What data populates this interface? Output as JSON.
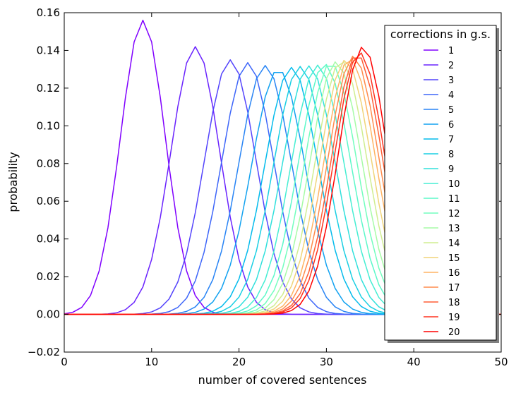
{
  "chart_data": {
    "type": "line",
    "title": "",
    "xlabel": "number of covered sentences",
    "ylabel": "probability",
    "xlim": [
      0,
      50
    ],
    "ylim": [
      -0.02,
      0.16
    ],
    "xticks": [
      "0",
      "10",
      "20",
      "30",
      "40",
      "50"
    ],
    "xtick_values": [
      0,
      10,
      20,
      30,
      40,
      50
    ],
    "yticks": [
      "−0.02",
      "0.00",
      "0.02",
      "0.04",
      "0.06",
      "0.08",
      "0.10",
      "0.12",
      "0.14",
      "0.16"
    ],
    "ytick_values": [
      -0.02,
      0.0,
      0.02,
      0.04,
      0.06,
      0.08,
      0.1,
      0.12,
      0.14,
      0.16
    ],
    "grid": false,
    "legend": {
      "title": "corrections in g.s.",
      "placement": "top-right"
    },
    "colormap": "rainbow",
    "series": [
      {
        "name": "1",
        "color": "#8000ff",
        "peak_x": 9,
        "peak_y": 0.156
      },
      {
        "name": "2",
        "color": "#6a23fe",
        "peak_x": 15,
        "peak_y": 0.142
      },
      {
        "name": "3",
        "color": "#5444fc",
        "peak_x": 19,
        "peak_y": 0.135
      },
      {
        "name": "4",
        "color": "#3e66f9",
        "peak_x": 21,
        "peak_y": 0.1335
      },
      {
        "name": "5",
        "color": "#2884f5",
        "peak_x": 23,
        "peak_y": 0.132
      },
      {
        "name": "6",
        "color": "#12a2f0",
        "peak_x": 24.5,
        "peak_y": 0.13
      },
      {
        "name": "7",
        "color": "#04bbec",
        "peak_x": 26,
        "peak_y": 0.131
      },
      {
        "name": "8",
        "color": "#1acfe3",
        "peak_x": 27,
        "peak_y": 0.1315
      },
      {
        "name": "9",
        "color": "#30e0dc",
        "peak_x": 28,
        "peak_y": 0.1318
      },
      {
        "name": "10",
        "color": "#46eed3",
        "peak_x": 29,
        "peak_y": 0.1322
      },
      {
        "name": "11",
        "color": "#5cf8c9",
        "peak_x": 29.8,
        "peak_y": 0.1328
      },
      {
        "name": "12",
        "color": "#72febe",
        "peak_x": 30.5,
        "peak_y": 0.1334
      },
      {
        "name": "13",
        "color": "#a6fba6",
        "peak_x": 31.1,
        "peak_y": 0.134
      },
      {
        "name": "14",
        "color": "#d0ed90",
        "peak_x": 31.7,
        "peak_y": 0.1345
      },
      {
        "name": "15",
        "color": "#f0d479",
        "peak_x": 32.2,
        "peak_y": 0.135
      },
      {
        "name": "16",
        "color": "#ffb464",
        "peak_x": 32.7,
        "peak_y": 0.136
      },
      {
        "name": "17",
        "color": "#ff8c4d",
        "peak_x": 33.1,
        "peak_y": 0.137
      },
      {
        "name": "18",
        "color": "#ff5f36",
        "peak_x": 33.5,
        "peak_y": 0.138
      },
      {
        "name": "19",
        "color": "#ff3320",
        "peak_x": 33.8,
        "peak_y": 0.139
      },
      {
        "name": "20",
        "color": "#ff0000",
        "peak_x": 34.2,
        "peak_y": 0.142
      }
    ]
  }
}
